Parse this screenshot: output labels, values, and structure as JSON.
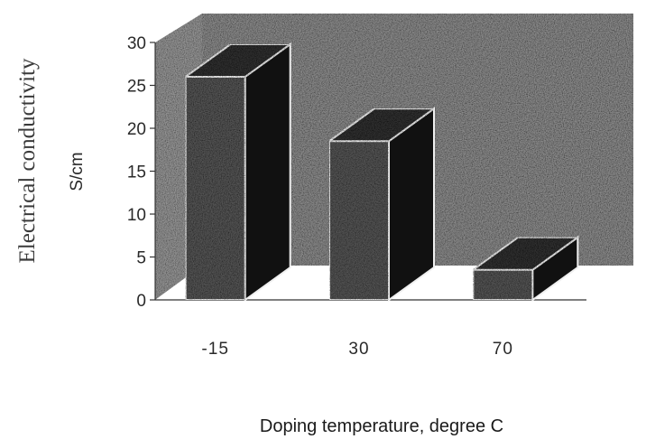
{
  "chart_data": {
    "type": "bar",
    "style": "3d",
    "title": "",
    "xlabel": "Doping temperature, degree C",
    "ylabel": "Electrical conductivity",
    "yunit": "S/cm",
    "categories": [
      "-15",
      "30",
      "70"
    ],
    "values": [
      26,
      18.5,
      3.5
    ],
    "ylim": [
      0,
      30
    ],
    "yticks": [
      0,
      5,
      10,
      15,
      20,
      25,
      30
    ],
    "legend": "none",
    "grid": false
  },
  "colors": {
    "back_wall": "#8a8a8a",
    "floor": "#ffffff",
    "bar_front": "#555555",
    "bar_top": "#333333",
    "bar_side": "#111111",
    "axis": "#333333",
    "bar_highlight": "#f0f0f0"
  }
}
